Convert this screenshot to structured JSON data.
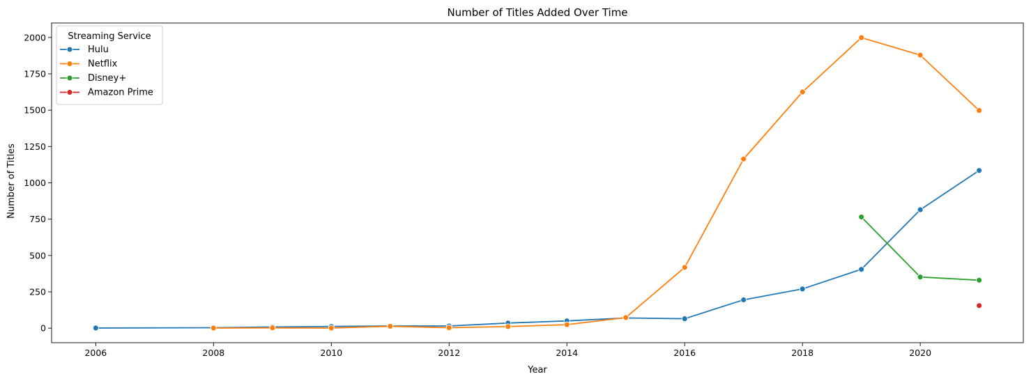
{
  "chart_data": {
    "type": "line",
    "title": "Number of Titles Added Over Time",
    "xlabel": "Year",
    "ylabel": "Number of Titles",
    "xlim": [
      2005.25,
      2021.75
    ],
    "ylim": [
      -100,
      2100
    ],
    "x_ticks": [
      2006,
      2008,
      2010,
      2012,
      2014,
      2016,
      2018,
      2020
    ],
    "y_ticks": [
      0,
      250,
      500,
      750,
      1000,
      1250,
      1500,
      1750,
      2000
    ],
    "grid": false,
    "legend": {
      "title": "Streaming Service",
      "placement": "upper-left"
    },
    "series": [
      {
        "name": "Hulu",
        "color": "#1f77b4",
        "points": [
          [
            2006,
            1
          ],
          [
            2008,
            3
          ],
          [
            2009,
            8
          ],
          [
            2010,
            12
          ],
          [
            2011,
            15
          ],
          [
            2012,
            15
          ],
          [
            2013,
            35
          ],
          [
            2014,
            50
          ],
          [
            2015,
            70
          ],
          [
            2016,
            65
          ],
          [
            2017,
            195
          ],
          [
            2018,
            270
          ],
          [
            2019,
            405
          ],
          [
            2020,
            815
          ],
          [
            2021,
            1085
          ]
        ]
      },
      {
        "name": "Netflix",
        "color": "#ff7f0e",
        "points": [
          [
            2008,
            1
          ],
          [
            2009,
            2
          ],
          [
            2010,
            1
          ],
          [
            2011,
            13
          ],
          [
            2012,
            3
          ],
          [
            2013,
            11
          ],
          [
            2014,
            24
          ],
          [
            2015,
            73
          ],
          [
            2016,
            418
          ],
          [
            2017,
            1164
          ],
          [
            2018,
            1625
          ],
          [
            2019,
            1999
          ],
          [
            2020,
            1879
          ],
          [
            2021,
            1498
          ]
        ]
      },
      {
        "name": "Disney+",
        "color": "#2ca02c",
        "points": [
          [
            2019,
            765
          ],
          [
            2020,
            352
          ],
          [
            2021,
            330
          ]
        ]
      },
      {
        "name": "Amazon Prime",
        "color": "#d62728",
        "points": [
          [
            2021,
            155
          ]
        ]
      }
    ]
  }
}
